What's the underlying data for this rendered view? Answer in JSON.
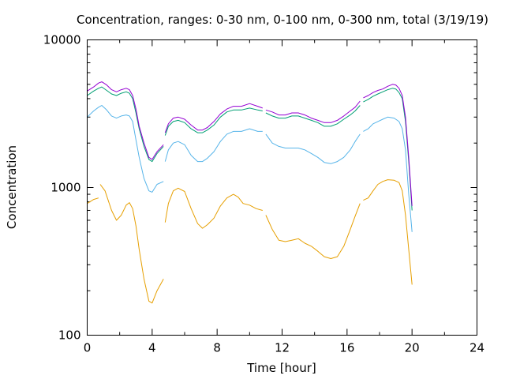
{
  "chart_data": {
    "type": "line",
    "title": "Concentration, ranges: 0-30 nm, 0-100 nm, 0-300 nm, total (3/19/19)",
    "xlabel": "Time [hour]",
    "ylabel": "Concentration",
    "xlim": [
      0,
      24
    ],
    "ylim": [
      100,
      10000
    ],
    "yscale": "log",
    "grid": false,
    "legend": "none",
    "x_ticks": [
      0,
      4,
      8,
      12,
      16,
      20,
      24
    ],
    "x_tick_labels": [
      "0",
      "4",
      "8",
      "12",
      "16",
      "20",
      "24"
    ],
    "y_ticks": [
      100,
      1000,
      10000
    ],
    "y_tick_labels": [
      "100",
      "1000",
      "10000"
    ],
    "series": [
      {
        "color": "#e69f00",
        "segments": [
          [
            [
              0,
              780
            ],
            [
              0.4,
              830
            ],
            [
              0.7,
              850
            ]
          ],
          [
            [
              0.8,
              1050
            ],
            [
              1.1,
              950
            ],
            [
              1.5,
              700
            ],
            [
              1.8,
              600
            ],
            [
              2.1,
              650
            ],
            [
              2.4,
              760
            ],
            [
              2.6,
              790
            ],
            [
              2.8,
              720
            ],
            [
              3.0,
              550
            ],
            [
              3.2,
              380
            ],
            [
              3.5,
              240
            ],
            [
              3.8,
              170
            ],
            [
              4.0,
              165
            ],
            [
              4.3,
              200
            ],
            [
              4.7,
              240
            ]
          ],
          [
            [
              4.8,
              580
            ],
            [
              5.0,
              780
            ],
            [
              5.3,
              950
            ],
            [
              5.6,
              990
            ],
            [
              6.0,
              940
            ],
            [
              6.4,
              720
            ],
            [
              6.8,
              570
            ],
            [
              7.1,
              530
            ],
            [
              7.4,
              560
            ],
            [
              7.8,
              620
            ],
            [
              8.2,
              750
            ],
            [
              8.6,
              850
            ],
            [
              9.0,
              900
            ],
            [
              9.3,
              860
            ],
            [
              9.6,
              780
            ],
            [
              10.0,
              760
            ],
            [
              10.4,
              720
            ],
            [
              10.8,
              700
            ]
          ],
          [
            [
              11.0,
              650
            ],
            [
              11.4,
              520
            ],
            [
              11.8,
              440
            ],
            [
              12.2,
              430
            ],
            [
              12.6,
              440
            ],
            [
              13.0,
              450
            ],
            [
              13.4,
              420
            ],
            [
              13.8,
              400
            ],
            [
              14.2,
              370
            ],
            [
              14.6,
              340
            ],
            [
              15.0,
              330
            ],
            [
              15.4,
              340
            ],
            [
              15.8,
              400
            ],
            [
              16.2,
              520
            ],
            [
              16.5,
              640
            ],
            [
              16.8,
              780
            ]
          ],
          [
            [
              17.0,
              820
            ],
            [
              17.3,
              850
            ],
            [
              17.6,
              950
            ],
            [
              17.9,
              1050
            ],
            [
              18.2,
              1100
            ],
            [
              18.5,
              1130
            ],
            [
              18.9,
              1120
            ],
            [
              19.2,
              1080
            ],
            [
              19.4,
              950
            ],
            [
              19.6,
              650
            ],
            [
              19.8,
              380
            ],
            [
              20.0,
              220
            ]
          ]
        ]
      },
      {
        "color": "#56b4e9",
        "segments": [
          [
            [
              0,
              3000
            ],
            [
              0.4,
              3300
            ],
            [
              0.7,
              3500
            ],
            [
              0.9,
              3600
            ],
            [
              1.2,
              3350
            ],
            [
              1.5,
              3050
            ],
            [
              1.8,
              2950
            ],
            [
              2.1,
              3050
            ],
            [
              2.4,
              3100
            ],
            [
              2.6,
              3050
            ],
            [
              2.8,
              2800
            ],
            [
              3.0,
              2100
            ],
            [
              3.2,
              1600
            ],
            [
              3.5,
              1150
            ],
            [
              3.8,
              950
            ],
            [
              4.0,
              930
            ],
            [
              4.3,
              1050
            ],
            [
              4.7,
              1100
            ]
          ],
          [
            [
              4.8,
              1500
            ],
            [
              5.0,
              1800
            ],
            [
              5.3,
              2000
            ],
            [
              5.6,
              2050
            ],
            [
              6.0,
              1950
            ],
            [
              6.4,
              1650
            ],
            [
              6.8,
              1500
            ],
            [
              7.1,
              1500
            ],
            [
              7.4,
              1580
            ],
            [
              7.8,
              1750
            ],
            [
              8.2,
              2050
            ],
            [
              8.6,
              2300
            ],
            [
              9.0,
              2400
            ],
            [
              9.5,
              2400
            ],
            [
              10.0,
              2500
            ],
            [
              10.5,
              2400
            ],
            [
              10.8,
              2400
            ]
          ],
          [
            [
              11.0,
              2300
            ],
            [
              11.4,
              2000
            ],
            [
              11.8,
              1900
            ],
            [
              12.2,
              1850
            ],
            [
              12.6,
              1850
            ],
            [
              13.0,
              1850
            ],
            [
              13.4,
              1800
            ],
            [
              13.8,
              1700
            ],
            [
              14.2,
              1600
            ],
            [
              14.6,
              1480
            ],
            [
              15.0,
              1450
            ],
            [
              15.4,
              1500
            ],
            [
              15.8,
              1600
            ],
            [
              16.2,
              1800
            ],
            [
              16.5,
              2050
            ],
            [
              16.8,
              2300
            ]
          ],
          [
            [
              17.0,
              2400
            ],
            [
              17.3,
              2500
            ],
            [
              17.6,
              2700
            ],
            [
              17.9,
              2800
            ],
            [
              18.2,
              2900
            ],
            [
              18.5,
              3000
            ],
            [
              18.9,
              2950
            ],
            [
              19.2,
              2800
            ],
            [
              19.4,
              2500
            ],
            [
              19.6,
              1800
            ],
            [
              19.8,
              900
            ],
            [
              20.0,
              500
            ]
          ]
        ]
      },
      {
        "color": "#009e73",
        "segments": [
          [
            [
              0,
              4200
            ],
            [
              0.4,
              4500
            ],
            [
              0.7,
              4700
            ],
            [
              0.9,
              4800
            ],
            [
              1.2,
              4550
            ],
            [
              1.5,
              4300
            ],
            [
              1.8,
              4200
            ],
            [
              2.1,
              4350
            ],
            [
              2.4,
              4450
            ],
            [
              2.6,
              4350
            ],
            [
              2.8,
              4000
            ],
            [
              3.0,
              3200
            ],
            [
              3.2,
              2500
            ],
            [
              3.5,
              1900
            ],
            [
              3.8,
              1550
            ],
            [
              4.0,
              1500
            ],
            [
              4.3,
              1700
            ],
            [
              4.7,
              1900
            ]
          ],
          [
            [
              4.8,
              2250
            ],
            [
              5.0,
              2600
            ],
            [
              5.3,
              2800
            ],
            [
              5.6,
              2850
            ],
            [
              6.0,
              2750
            ],
            [
              6.4,
              2500
            ],
            [
              6.8,
              2350
            ],
            [
              7.1,
              2350
            ],
            [
              7.4,
              2450
            ],
            [
              7.8,
              2650
            ],
            [
              8.2,
              3000
            ],
            [
              8.6,
              3250
            ],
            [
              9.0,
              3350
            ],
            [
              9.5,
              3350
            ],
            [
              10.0,
              3450
            ],
            [
              10.5,
              3350
            ],
            [
              10.8,
              3300
            ]
          ],
          [
            [
              11.0,
              3200
            ],
            [
              11.4,
              3050
            ],
            [
              11.8,
              2950
            ],
            [
              12.2,
              2950
            ],
            [
              12.6,
              3050
            ],
            [
              13.0,
              3050
            ],
            [
              13.4,
              2950
            ],
            [
              13.8,
              2850
            ],
            [
              14.2,
              2750
            ],
            [
              14.6,
              2600
            ],
            [
              15.0,
              2600
            ],
            [
              15.4,
              2700
            ],
            [
              15.8,
              2900
            ],
            [
              16.2,
              3100
            ],
            [
              16.5,
              3300
            ],
            [
              16.8,
              3600
            ]
          ],
          [
            [
              17.0,
              3800
            ],
            [
              17.3,
              3950
            ],
            [
              17.6,
              4150
            ],
            [
              17.9,
              4300
            ],
            [
              18.2,
              4450
            ],
            [
              18.5,
              4600
            ],
            [
              18.8,
              4700
            ],
            [
              19.0,
              4650
            ],
            [
              19.2,
              4400
            ],
            [
              19.4,
              4000
            ],
            [
              19.6,
              2800
            ],
            [
              19.8,
              1500
            ],
            [
              20.0,
              700
            ]
          ]
        ]
      },
      {
        "color": "#9400d3",
        "segments": [
          [
            [
              0,
              4500
            ],
            [
              0.4,
              4800
            ],
            [
              0.7,
              5100
            ],
            [
              0.9,
              5200
            ],
            [
              1.2,
              4950
            ],
            [
              1.5,
              4600
            ],
            [
              1.8,
              4450
            ],
            [
              2.1,
              4600
            ],
            [
              2.4,
              4700
            ],
            [
              2.6,
              4600
            ],
            [
              2.8,
              4200
            ],
            [
              3.0,
              3400
            ],
            [
              3.2,
              2600
            ],
            [
              3.5,
              2000
            ],
            [
              3.8,
              1600
            ],
            [
              4.0,
              1550
            ],
            [
              4.3,
              1750
            ],
            [
              4.7,
              1950
            ]
          ],
          [
            [
              4.8,
              2350
            ],
            [
              5.0,
              2700
            ],
            [
              5.3,
              2950
            ],
            [
              5.6,
              3000
            ],
            [
              6.0,
              2900
            ],
            [
              6.4,
              2650
            ],
            [
              6.8,
              2450
            ],
            [
              7.1,
              2450
            ],
            [
              7.4,
              2550
            ],
            [
              7.8,
              2800
            ],
            [
              8.2,
              3150
            ],
            [
              8.6,
              3400
            ],
            [
              9.0,
              3550
            ],
            [
              9.5,
              3550
            ],
            [
              10.0,
              3700
            ],
            [
              10.5,
              3550
            ],
            [
              10.8,
              3450
            ]
          ],
          [
            [
              11.0,
              3350
            ],
            [
              11.4,
              3250
            ],
            [
              11.8,
              3100
            ],
            [
              12.2,
              3100
            ],
            [
              12.6,
              3200
            ],
            [
              13.0,
              3200
            ],
            [
              13.4,
              3100
            ],
            [
              13.8,
              2950
            ],
            [
              14.2,
              2850
            ],
            [
              14.6,
              2750
            ],
            [
              15.0,
              2750
            ],
            [
              15.4,
              2850
            ],
            [
              15.8,
              3050
            ],
            [
              16.2,
              3300
            ],
            [
              16.5,
              3500
            ],
            [
              16.8,
              3850
            ]
          ],
          [
            [
              17.0,
              4050
            ],
            [
              17.3,
              4200
            ],
            [
              17.6,
              4400
            ],
            [
              17.9,
              4550
            ],
            [
              18.2,
              4650
            ],
            [
              18.5,
              4850
            ],
            [
              18.8,
              5000
            ],
            [
              19.0,
              4950
            ],
            [
              19.2,
              4700
            ],
            [
              19.4,
              4200
            ],
            [
              19.6,
              3000
            ],
            [
              19.8,
              1600
            ],
            [
              20.0,
              750
            ]
          ]
        ]
      }
    ]
  }
}
